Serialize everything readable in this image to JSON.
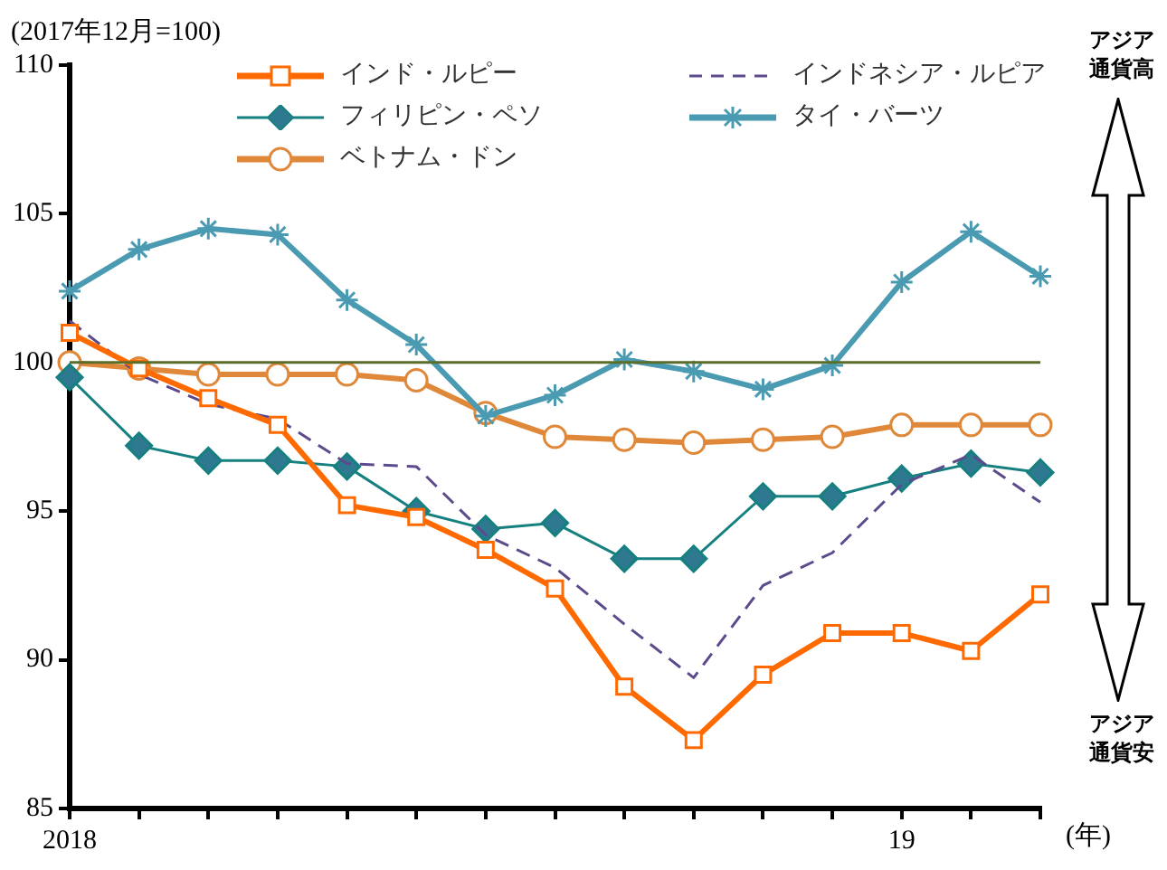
{
  "chart_data": {
    "type": "line",
    "ylabel": "(2017年12月=100)",
    "xlabel": "(年)",
    "categories": [
      "2018",
      null,
      null,
      null,
      null,
      null,
      null,
      null,
      null,
      null,
      null,
      null,
      "19",
      null,
      null
    ],
    "ylim": [
      85,
      110
    ],
    "yticks": [
      85,
      90,
      95,
      100,
      105,
      110
    ],
    "grid": false,
    "legend": "top",
    "series": [
      {
        "name": "インド・ルピー",
        "color": "#ff6a00",
        "marker": "square",
        "line_style": "solid",
        "values": [
          101.0,
          99.8,
          98.8,
          97.9,
          95.2,
          94.8,
          93.7,
          92.4,
          89.1,
          87.3,
          89.5,
          90.9,
          90.9,
          90.3,
          92.2
        ]
      },
      {
        "name": "インドネシア・ルピア",
        "color": "#5c4a8c",
        "marker": "none",
        "line_style": "dashed",
        "values": [
          101.4,
          99.6,
          98.6,
          98.1,
          96.6,
          96.5,
          94.2,
          93.1,
          91.2,
          89.4,
          92.5,
          93.6,
          95.9,
          96.9,
          95.3
        ]
      },
      {
        "name": "フィリピン・ペソ",
        "color": "#168080",
        "marker": "diamond",
        "line_style": "solid",
        "values": [
          99.5,
          97.2,
          96.7,
          96.7,
          96.5,
          95.0,
          94.4,
          94.6,
          93.4,
          93.4,
          95.5,
          95.5,
          96.1,
          96.6,
          96.3
        ]
      },
      {
        "name": "タイ・バーツ",
        "color": "#4a9ab2",
        "marker": "cross",
        "line_style": "solid",
        "values": [
          102.4,
          103.8,
          104.5,
          104.3,
          102.1,
          100.6,
          98.2,
          98.9,
          100.1,
          99.7,
          99.1,
          99.9,
          102.7,
          104.4,
          102.9
        ]
      },
      {
        "name": "ベトナム・ドン",
        "color": "#e0883a",
        "marker": "circle",
        "line_style": "solid",
        "values": [
          100.0,
          99.8,
          99.6,
          99.6,
          99.6,
          99.4,
          98.3,
          97.5,
          97.4,
          97.3,
          97.4,
          97.5,
          97.9,
          97.9,
          97.9
        ]
      }
    ],
    "ref_lines": [
      {
        "axis": "y",
        "value": 100,
        "color": "#5a6e2a"
      }
    ],
    "annotations": [
      "アジア通貨高",
      "アジア通貨安"
    ]
  }
}
